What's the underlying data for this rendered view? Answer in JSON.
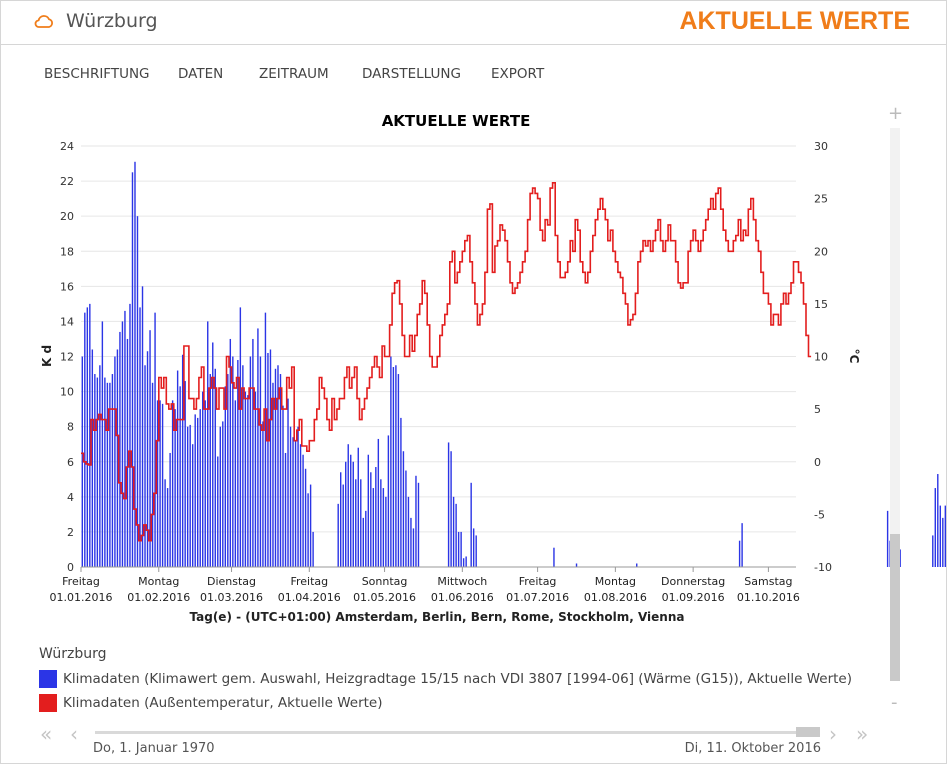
{
  "header": {
    "location": "Würzburg",
    "brand": "AKTUELLE WERTE",
    "icon": "cloud-icon"
  },
  "menu": [
    "BESCHRIFTUNG",
    "DATEN",
    "ZEITRAUM",
    "DARSTELLUNG",
    "EXPORT"
  ],
  "colors": {
    "brand": "#f07d1a",
    "series1": "#2b35e6",
    "series2": "#e31e1e"
  },
  "legend": {
    "title": "Würzburg",
    "items": [
      "Klimadaten (Klimawert gem. Auswahl, Heizgradtage 15/15 nach VDI 3807 [1994-06] (Wärme (G15)), Aktuelle Werte)",
      "Klimadaten (Außentemperatur, Aktuelle Werte)"
    ]
  },
  "navigator": {
    "start": "Do, 1. Januar 1970",
    "end": "Di, 11. Oktober 2016"
  },
  "zoom": {
    "plus": "+",
    "minus": "-"
  },
  "chart_data": {
    "type": "bar",
    "title": "AKTUELLE WERTE",
    "xlabel": "Tag(e) - (UTC+01:00) Amsterdam, Berlin, Bern, Rome, Stockholm, Vienna",
    "ylabel_left": "K d",
    "ylabel_right": "°C",
    "ylim_left": [
      0,
      24
    ],
    "ylim_right": [
      -10,
      30
    ],
    "yticks_left": [
      0,
      2,
      4,
      6,
      8,
      10,
      12,
      14,
      16,
      18,
      20,
      22,
      24
    ],
    "yticks_right": [
      -10,
      -5,
      0,
      5,
      10,
      15,
      20,
      25,
      30
    ],
    "xticks": [
      {
        "day": 0,
        "weekday": "Freitag",
        "date": "01.01.2016"
      },
      {
        "day": 31,
        "weekday": "Montag",
        "date": "01.02.2016"
      },
      {
        "day": 60,
        "weekday": "Dienstag",
        "date": "01.03.2016"
      },
      {
        "day": 91,
        "weekday": "Freitag",
        "date": "01.04.2016"
      },
      {
        "day": 121,
        "weekday": "Sonntag",
        "date": "01.05.2016"
      },
      {
        "day": 152,
        "weekday": "Mittwoch",
        "date": "01.06.2016"
      },
      {
        "day": 182,
        "weekday": "Freitag",
        "date": "01.07.2016"
      },
      {
        "day": 213,
        "weekday": "Montag",
        "date": "01.08.2016"
      },
      {
        "day": 244,
        "weekday": "Donnerstag",
        "date": "01.09.2016"
      },
      {
        "day": 274,
        "weekday": "Samstag",
        "date": "01.10.2016"
      }
    ],
    "grid": true,
    "series": [
      {
        "name": "Klimadaten (Klimawert gem. Auswahl, Heizgradtage 15/15 nach VDI 3807 [1994-06] (Wärme (G15)), Aktuelle Werte)",
        "type": "bar",
        "axis": "left",
        "start": "01.01.2016",
        "values": [
          12,
          14.5,
          14.8,
          15,
          12.4,
          11,
          10.8,
          11.5,
          14,
          10.8,
          10.5,
          10.5,
          11,
          12,
          12.4,
          13.4,
          14,
          14.6,
          13,
          15,
          22.5,
          23.1,
          20,
          14.8,
          16,
          11.5,
          12.3,
          13.5,
          10.5,
          14.5,
          9.5,
          9.5,
          9.3,
          5,
          4.5,
          6.5,
          9.5,
          9,
          11.2,
          10.3,
          12.1,
          10.6,
          8,
          8.1,
          7,
          8.7,
          8.5,
          9,
          10,
          9.5,
          14,
          11,
          12.8,
          11.3,
          6.3,
          8,
          8.3,
          10.3,
          11,
          13,
          12,
          9.5,
          11.8,
          14.8,
          11.5,
          10,
          9.8,
          12,
          13,
          10,
          13.6,
          12,
          8.3,
          14.5,
          12.2,
          12.4,
          10.5,
          11.3,
          11.5,
          11,
          9.2,
          6.5,
          9.6,
          8,
          7.4,
          7.2,
          8,
          7,
          6.4,
          5.6,
          4.2,
          4.7,
          2,
          0,
          0,
          0,
          0,
          0,
          0,
          0,
          0,
          0,
          3.6,
          5.4,
          4.7,
          6,
          7,
          6.4,
          6,
          5,
          6.8,
          5,
          2.8,
          3.2,
          6.4,
          5.4,
          4.5,
          5.7,
          7.3,
          5,
          4.5,
          4,
          7.5,
          12,
          11.4,
          11.5,
          11,
          8.5,
          6.6,
          5.5,
          4,
          2.8,
          2.2,
          5.2,
          4.8,
          0,
          0,
          0,
          0,
          0,
          0,
          0,
          0,
          0,
          0,
          0,
          7.1,
          6.6,
          4,
          3.6,
          2,
          2,
          0.5,
          0.6,
          0,
          4.8,
          2.2,
          1.8,
          0,
          0,
          0,
          0,
          0,
          0,
          0,
          0,
          0,
          0,
          0,
          0,
          0,
          0,
          0,
          0,
          0,
          0,
          0,
          0,
          0,
          0,
          0,
          0,
          0,
          0,
          0,
          0,
          0,
          0,
          1.1,
          0,
          0,
          0,
          0,
          0,
          0,
          0,
          0,
          0.2,
          0,
          0,
          0,
          0,
          0,
          0,
          0,
          0,
          0,
          0,
          0,
          0,
          0,
          0,
          0,
          0,
          0,
          0,
          0,
          0,
          0,
          0,
          0,
          0.2,
          0,
          0,
          0,
          0,
          0,
          0,
          0,
          0,
          0,
          0,
          0,
          0,
          0,
          0,
          0,
          0,
          0,
          0,
          0,
          0,
          0,
          0,
          0,
          0,
          0,
          0,
          0,
          0,
          0,
          0,
          0,
          0,
          0,
          0,
          0,
          0,
          0,
          0,
          0,
          0,
          1.5,
          2.5,
          0,
          0,
          0,
          0,
          0,
          0,
          0,
          0,
          0,
          0,
          0,
          0,
          0,
          0,
          0,
          0,
          0,
          0,
          0,
          0,
          0,
          0,
          0,
          0,
          0,
          0,
          0,
          0,
          0,
          0,
          0,
          0,
          0,
          0,
          0,
          0,
          0,
          0,
          0,
          0,
          0,
          0,
          0,
          0,
          0,
          0,
          0,
          0,
          0,
          0,
          0,
          0,
          0,
          0,
          0,
          0,
          0,
          3.2,
          1.5,
          2.4,
          4.8,
          1.5,
          1,
          0,
          0,
          0,
          0,
          0,
          0,
          0,
          0,
          0,
          0,
          0,
          0,
          1.8,
          4.5,
          5.3,
          3.5,
          2.8,
          3.5,
          3.8,
          4.2,
          4.5
        ]
      },
      {
        "name": "Klimadaten (Außentemperatur, Aktuelle Werte)",
        "type": "line",
        "step": true,
        "axis": "right",
        "start": "01.01.2016",
        "values": [
          0.8,
          0,
          -0.2,
          -0.3,
          4,
          3,
          4,
          4.5,
          4,
          4,
          3,
          5,
          5,
          5,
          2.5,
          -2,
          -3,
          -3.5,
          -0.5,
          1,
          -0.5,
          -4.5,
          -6,
          -7.5,
          -7,
          -6,
          -6.5,
          -7.5,
          -5,
          -3,
          2,
          8,
          7,
          8,
          5.5,
          5,
          5.5,
          3,
          4,
          4,
          4,
          11,
          11,
          6,
          6,
          5,
          6,
          8,
          9,
          5,
          5,
          7,
          8,
          7,
          5,
          7,
          7,
          5,
          10,
          9,
          7.5,
          7,
          8,
          5,
          7,
          6,
          6,
          7,
          7,
          5,
          5,
          3.5,
          3,
          5,
          2,
          4,
          6,
          5,
          6,
          7,
          5,
          5,
          8,
          7,
          9,
          2,
          3,
          4,
          1.5,
          1.5,
          1,
          2,
          2,
          4,
          5,
          8,
          7,
          6,
          4,
          3,
          6,
          4,
          5,
          6,
          6,
          8,
          9,
          7,
          8,
          9,
          6,
          4,
          5,
          6,
          7,
          8,
          9,
          10,
          9,
          8,
          11,
          10,
          10,
          13,
          16,
          17,
          17.2,
          15,
          12,
          10,
          10,
          12,
          10.5,
          12,
          14,
          15,
          17.2,
          16,
          13,
          10,
          9,
          9,
          10,
          12,
          13,
          14,
          15,
          19,
          20,
          17,
          18,
          19,
          20,
          21,
          21.5,
          19,
          17,
          15,
          13,
          14,
          15,
          18,
          24,
          24.5,
          18,
          20.5,
          21,
          22.5,
          22,
          21,
          19,
          17,
          16,
          16.5,
          17,
          18,
          19,
          20,
          23,
          25.5,
          26,
          25.5,
          25,
          22,
          21,
          23,
          22.5,
          26,
          26.5,
          21.5,
          19,
          17.5,
          17.5,
          18,
          19,
          21,
          20,
          23,
          22,
          19,
          18,
          17,
          18,
          20,
          21.5,
          23,
          24,
          25,
          24,
          23,
          21,
          22,
          20,
          19,
          18,
          17.5,
          16,
          15,
          13,
          13.5,
          14,
          16,
          19,
          20,
          21,
          20.5,
          21,
          20,
          21,
          22,
          23,
          21,
          20,
          21,
          22.5,
          21,
          21,
          19,
          17,
          16.5,
          17,
          17,
          20,
          21,
          22,
          21,
          20,
          21,
          22,
          23,
          24,
          25,
          24,
          25.5,
          26,
          24,
          22,
          21,
          20,
          20,
          21,
          21.5,
          23,
          21,
          22,
          21.5,
          24,
          25,
          23,
          21,
          20,
          18,
          16,
          16,
          15,
          13,
          14,
          14,
          13,
          15,
          16,
          15,
          16,
          17,
          19,
          19,
          18,
          17,
          15,
          12,
          10
        ]
      }
    ]
  }
}
